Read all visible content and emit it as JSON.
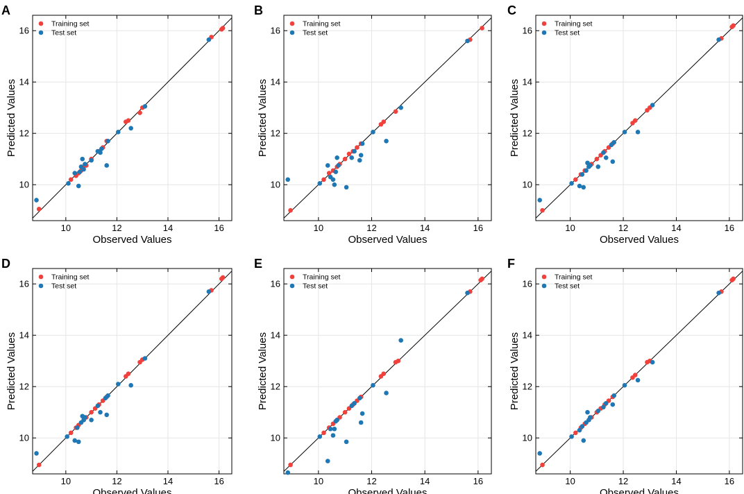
{
  "colors": {
    "training": "#f0413c",
    "test": "#1f77b4",
    "frame": "#000000",
    "grid": "#e6e6e6",
    "diagonal": "#000000"
  },
  "chart_data": [
    {
      "panel": "A",
      "type": "scatter",
      "title": "",
      "xlabel": "Observed Values",
      "ylabel": "Predicted Values",
      "xlim": [
        8.7,
        16.5
      ],
      "ylim": [
        8.6,
        16.6
      ],
      "xticks": [
        10,
        12,
        14,
        16
      ],
      "yticks": [
        10,
        12,
        14,
        16
      ],
      "grid": true,
      "legend": "top-left",
      "series": [
        {
          "name": "Training set",
          "points": [
            [
              8.95,
              9.05
            ],
            [
              10.2,
              10.2
            ],
            [
              10.4,
              10.35
            ],
            [
              10.5,
              10.45
            ],
            [
              10.6,
              10.55
            ],
            [
              10.7,
              10.7
            ],
            [
              10.8,
              10.75
            ],
            [
              11.0,
              11.0
            ],
            [
              11.3,
              11.3
            ],
            [
              11.45,
              11.45
            ],
            [
              11.6,
              11.7
            ],
            [
              12.35,
              12.45
            ],
            [
              12.45,
              12.5
            ],
            [
              12.9,
              12.8
            ],
            [
              13.0,
              13.0
            ],
            [
              15.7,
              15.75
            ],
            [
              16.1,
              16.05
            ],
            [
              16.15,
              16.1
            ]
          ]
        },
        {
          "name": "Test set",
          "points": [
            [
              8.85,
              9.4
            ],
            [
              10.1,
              10.05
            ],
            [
              10.35,
              10.45
            ],
            [
              10.5,
              9.95
            ],
            [
              10.55,
              10.5
            ],
            [
              10.6,
              10.7
            ],
            [
              10.65,
              11.0
            ],
            [
              10.7,
              10.6
            ],
            [
              10.75,
              10.8
            ],
            [
              11.0,
              10.95
            ],
            [
              11.25,
              11.3
            ],
            [
              11.35,
              11.25
            ],
            [
              11.4,
              11.4
            ],
            [
              11.6,
              10.75
            ],
            [
              11.65,
              11.7
            ],
            [
              12.05,
              12.05
            ],
            [
              12.55,
              12.2
            ],
            [
              13.1,
              13.05
            ],
            [
              15.6,
              15.65
            ]
          ]
        }
      ]
    },
    {
      "panel": "B",
      "type": "scatter",
      "title": "",
      "xlabel": "Observed Values",
      "ylabel": "Predicted Values",
      "xlim": [
        8.7,
        16.5
      ],
      "ylim": [
        8.6,
        16.6
      ],
      "xticks": [
        10,
        12,
        14,
        16
      ],
      "yticks": [
        10,
        12,
        14,
        16
      ],
      "grid": true,
      "legend": "top-left",
      "series": [
        {
          "name": "Training set",
          "points": [
            [
              8.95,
              9.0
            ],
            [
              10.2,
              10.2
            ],
            [
              10.4,
              10.45
            ],
            [
              10.55,
              10.55
            ],
            [
              10.7,
              10.7
            ],
            [
              10.8,
              10.8
            ],
            [
              11.0,
              11.0
            ],
            [
              11.15,
              11.2
            ],
            [
              11.3,
              11.3
            ],
            [
              11.45,
              11.45
            ],
            [
              11.6,
              11.6
            ],
            [
              12.35,
              12.35
            ],
            [
              12.45,
              12.45
            ],
            [
              12.9,
              12.85
            ],
            [
              15.7,
              15.65
            ],
            [
              16.15,
              16.1
            ]
          ]
        },
        {
          "name": "Test set",
          "points": [
            [
              8.85,
              10.2
            ],
            [
              10.05,
              10.05
            ],
            [
              10.35,
              10.75
            ],
            [
              10.45,
              10.3
            ],
            [
              10.55,
              10.2
            ],
            [
              10.6,
              10.0
            ],
            [
              10.65,
              10.5
            ],
            [
              10.7,
              11.05
            ],
            [
              10.75,
              10.75
            ],
            [
              11.05,
              9.9
            ],
            [
              11.25,
              11.05
            ],
            [
              11.35,
              11.3
            ],
            [
              11.55,
              10.95
            ],
            [
              11.6,
              11.15
            ],
            [
              11.65,
              11.6
            ],
            [
              12.05,
              12.05
            ],
            [
              12.55,
              11.7
            ],
            [
              13.1,
              13.0
            ],
            [
              15.6,
              15.6
            ]
          ]
        }
      ]
    },
    {
      "panel": "C",
      "type": "scatter",
      "title": "",
      "xlabel": "Observed Values",
      "ylabel": "Predicted Values",
      "xlim": [
        8.7,
        16.5
      ],
      "ylim": [
        8.6,
        16.6
      ],
      "xticks": [
        10,
        12,
        14,
        16
      ],
      "yticks": [
        10,
        12,
        14,
        16
      ],
      "grid": true,
      "legend": "top-left",
      "series": [
        {
          "name": "Training set",
          "points": [
            [
              8.95,
              9.0
            ],
            [
              10.2,
              10.2
            ],
            [
              10.4,
              10.4
            ],
            [
              10.55,
              10.55
            ],
            [
              10.7,
              10.7
            ],
            [
              10.8,
              10.8
            ],
            [
              11.0,
              11.0
            ],
            [
              11.15,
              11.15
            ],
            [
              11.3,
              11.3
            ],
            [
              11.45,
              11.45
            ],
            [
              11.6,
              11.6
            ],
            [
              12.35,
              12.4
            ],
            [
              12.45,
              12.5
            ],
            [
              12.9,
              12.9
            ],
            [
              13.0,
              13.0
            ],
            [
              15.7,
              15.7
            ],
            [
              16.1,
              16.15
            ],
            [
              16.15,
              16.2
            ]
          ]
        },
        {
          "name": "Test set",
          "points": [
            [
              8.85,
              9.4
            ],
            [
              10.05,
              10.05
            ],
            [
              10.35,
              9.95
            ],
            [
              10.45,
              10.4
            ],
            [
              10.5,
              9.9
            ],
            [
              10.6,
              10.55
            ],
            [
              10.65,
              10.85
            ],
            [
              10.7,
              10.7
            ],
            [
              10.75,
              10.75
            ],
            [
              11.05,
              10.7
            ],
            [
              11.25,
              11.25
            ],
            [
              11.35,
              11.05
            ],
            [
              11.55,
              11.55
            ],
            [
              11.6,
              10.9
            ],
            [
              11.65,
              11.65
            ],
            [
              12.05,
              12.05
            ],
            [
              12.55,
              12.05
            ],
            [
              13.1,
              13.1
            ],
            [
              15.6,
              15.65
            ]
          ]
        }
      ]
    },
    {
      "panel": "D",
      "type": "scatter",
      "title": "",
      "xlabel": "Observed Values",
      "ylabel": "Predicted Values",
      "xlim": [
        8.7,
        16.5
      ],
      "ylim": [
        8.6,
        16.6
      ],
      "xticks": [
        10,
        12,
        14,
        16
      ],
      "yticks": [
        10,
        12,
        14,
        16
      ],
      "grid": true,
      "legend": "top-left",
      "series": [
        {
          "name": "Training set",
          "points": [
            [
              8.95,
              8.95
            ],
            [
              10.2,
              10.2
            ],
            [
              10.4,
              10.4
            ],
            [
              10.5,
              10.5
            ],
            [
              10.7,
              10.7
            ],
            [
              10.8,
              10.8
            ],
            [
              11.0,
              11.0
            ],
            [
              11.15,
              11.15
            ],
            [
              11.3,
              11.3
            ],
            [
              11.45,
              11.45
            ],
            [
              11.6,
              11.6
            ],
            [
              12.35,
              12.4
            ],
            [
              12.45,
              12.5
            ],
            [
              12.9,
              12.95
            ],
            [
              13.0,
              13.05
            ],
            [
              15.7,
              15.75
            ],
            [
              16.1,
              16.2
            ],
            [
              16.15,
              16.25
            ]
          ]
        },
        {
          "name": "Test set",
          "points": [
            [
              8.85,
              9.4
            ],
            [
              10.05,
              10.05
            ],
            [
              10.35,
              9.9
            ],
            [
              10.45,
              10.4
            ],
            [
              10.5,
              9.85
            ],
            [
              10.6,
              10.6
            ],
            [
              10.65,
              10.85
            ],
            [
              10.7,
              10.7
            ],
            [
              10.75,
              10.8
            ],
            [
              11.0,
              10.7
            ],
            [
              11.25,
              11.25
            ],
            [
              11.35,
              11.0
            ],
            [
              11.55,
              11.55
            ],
            [
              11.6,
              10.9
            ],
            [
              11.65,
              11.65
            ],
            [
              12.05,
              12.1
            ],
            [
              12.55,
              12.05
            ],
            [
              13.1,
              13.1
            ],
            [
              15.6,
              15.7
            ]
          ]
        }
      ]
    },
    {
      "panel": "E",
      "type": "scatter",
      "title": "",
      "xlabel": "Observed Values",
      "ylabel": "Predicted Values",
      "xlim": [
        8.7,
        16.5
      ],
      "ylim": [
        8.6,
        16.6
      ],
      "xticks": [
        10,
        12,
        14,
        16
      ],
      "yticks": [
        10,
        12,
        14,
        16
      ],
      "grid": true,
      "legend": "top-left",
      "series": [
        {
          "name": "Training set",
          "points": [
            [
              8.95,
              8.95
            ],
            [
              10.2,
              10.2
            ],
            [
              10.4,
              10.4
            ],
            [
              10.55,
              10.55
            ],
            [
              10.7,
              10.7
            ],
            [
              10.8,
              10.8
            ],
            [
              11.0,
              11.0
            ],
            [
              11.15,
              11.15
            ],
            [
              11.3,
              11.3
            ],
            [
              11.45,
              11.45
            ],
            [
              11.6,
              11.6
            ],
            [
              12.35,
              12.4
            ],
            [
              12.45,
              12.5
            ],
            [
              12.9,
              12.95
            ],
            [
              13.0,
              13.0
            ],
            [
              15.7,
              15.7
            ],
            [
              16.1,
              16.15
            ],
            [
              16.15,
              16.2
            ]
          ]
        },
        {
          "name": "Test set",
          "points": [
            [
              8.85,
              8.65
            ],
            [
              10.05,
              10.05
            ],
            [
              10.35,
              9.1
            ],
            [
              10.45,
              10.35
            ],
            [
              10.55,
              10.1
            ],
            [
              10.6,
              10.35
            ],
            [
              10.65,
              10.65
            ],
            [
              10.7,
              10.7
            ],
            [
              11.05,
              9.85
            ],
            [
              11.25,
              11.25
            ],
            [
              11.35,
              11.35
            ],
            [
              11.55,
              11.55
            ],
            [
              11.6,
              10.6
            ],
            [
              11.65,
              10.95
            ],
            [
              12.05,
              12.05
            ],
            [
              12.55,
              11.75
            ],
            [
              13.1,
              13.8
            ],
            [
              15.6,
              15.65
            ]
          ]
        }
      ]
    },
    {
      "panel": "F",
      "type": "scatter",
      "title": "",
      "xlabel": "Observed Values",
      "ylabel": "Predicted Values",
      "xlim": [
        8.7,
        16.5
      ],
      "ylim": [
        8.6,
        16.6
      ],
      "xticks": [
        10,
        12,
        14,
        16
      ],
      "yticks": [
        10,
        12,
        14,
        16
      ],
      "grid": true,
      "legend": "top-left",
      "series": [
        {
          "name": "Training set",
          "points": [
            [
              8.95,
              8.95
            ],
            [
              10.2,
              10.2
            ],
            [
              10.4,
              10.4
            ],
            [
              10.55,
              10.55
            ],
            [
              10.7,
              10.7
            ],
            [
              10.8,
              10.8
            ],
            [
              11.0,
              11.0
            ],
            [
              11.15,
              11.15
            ],
            [
              11.3,
              11.3
            ],
            [
              11.45,
              11.45
            ],
            [
              11.6,
              11.6
            ],
            [
              12.35,
              12.35
            ],
            [
              12.45,
              12.45
            ],
            [
              12.9,
              12.95
            ],
            [
              13.0,
              13.0
            ],
            [
              15.7,
              15.7
            ],
            [
              16.1,
              16.15
            ],
            [
              16.15,
              16.2
            ]
          ]
        },
        {
          "name": "Test set",
          "points": [
            [
              8.85,
              9.4
            ],
            [
              10.05,
              10.05
            ],
            [
              10.35,
              10.3
            ],
            [
              10.45,
              10.45
            ],
            [
              10.5,
              9.9
            ],
            [
              10.6,
              10.6
            ],
            [
              10.65,
              11.0
            ],
            [
              10.7,
              10.7
            ],
            [
              10.75,
              10.8
            ],
            [
              11.05,
              11.05
            ],
            [
              11.25,
              11.2
            ],
            [
              11.35,
              11.35
            ],
            [
              11.6,
              11.3
            ],
            [
              11.65,
              11.65
            ],
            [
              12.05,
              12.05
            ],
            [
              12.55,
              12.25
            ],
            [
              13.1,
              12.95
            ],
            [
              15.6,
              15.65
            ]
          ]
        }
      ]
    }
  ]
}
